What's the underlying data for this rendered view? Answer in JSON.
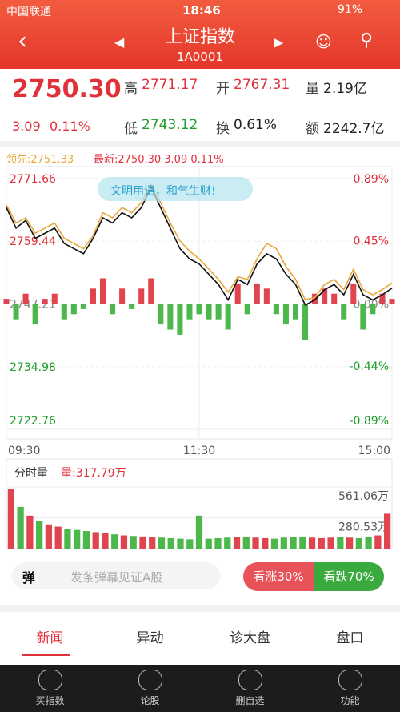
{
  "status_bar": {
    "carrier": "中国联通",
    "time": "18:46",
    "battery": "91%"
  },
  "header": {
    "title": "上证指数",
    "code": "1A0001"
  },
  "quote": {
    "price": "2750.30",
    "change": "3.09",
    "change_pct": "0.11%",
    "items": [
      {
        "label": "高",
        "value": "2771.17"
      },
      {
        "label": "开",
        "value": "2767.31"
      },
      {
        "label": "量",
        "value": "2.19亿"
      },
      {
        "label": "低",
        "value": "2743.12"
      },
      {
        "label": "换",
        "value": "0.61%"
      },
      {
        "label": "额",
        "value": "2242.7亿"
      }
    ]
  },
  "danmaku": "文明用语，和气生财!",
  "chart_data": [
    {
      "type": "line",
      "legend": [
        "领先:2751.33",
        "最新:2750.30 3.09 0.11%"
      ],
      "xlim": [
        0,
        240
      ],
      "xticks": [
        {
          "value": 0,
          "label": "09:30"
        },
        {
          "value": 120,
          "label": "11:30"
        },
        {
          "value": 240,
          "label": "15:00"
        }
      ],
      "ylim": [
        2722.76,
        2771.66
      ],
      "yticks": [
        2771.66,
        2759.44,
        2747.21,
        2734.98,
        2722.76
      ],
      "y2lim": [
        -0.89,
        0.89
      ],
      "y2ticks": [
        {
          "value": 0.89,
          "label": "0.89%"
        },
        {
          "value": 0.45,
          "label": "0.45%"
        },
        {
          "value": 0,
          "label": "0.00%"
        },
        {
          "value": -0.44,
          "label": "-0.44%"
        },
        {
          "value": -0.89,
          "label": "-0.89%"
        }
      ],
      "x": [
        0,
        6,
        12,
        18,
        24,
        30,
        36,
        42,
        48,
        54,
        60,
        66,
        72,
        78,
        84,
        90,
        96,
        102,
        108,
        114,
        120,
        126,
        132,
        138,
        144,
        150,
        156,
        162,
        168,
        174,
        180,
        186,
        192,
        198,
        204,
        210,
        216,
        222,
        228,
        234,
        240
      ],
      "series": [
        {
          "name": "最新",
          "color": "#111111",
          "values": [
            2766,
            2762,
            2763.5,
            2760,
            2761,
            2762,
            2759,
            2758,
            2757,
            2760,
            2764,
            2763,
            2765,
            2764,
            2766,
            2770,
            2766,
            2762,
            2758,
            2756,
            2755,
            2753,
            2751,
            2748,
            2752,
            2751,
            2755,
            2757,
            2756,
            2753,
            2751,
            2747,
            2748,
            2750,
            2751,
            2749,
            2753,
            2749,
            2748,
            2749,
            2750.3
          ]
        },
        {
          "name": "领先",
          "color": "#e8a838",
          "values": [
            2766.5,
            2763,
            2764,
            2761,
            2762,
            2763,
            2760,
            2759,
            2758,
            2760.5,
            2765,
            2764,
            2766,
            2765,
            2767,
            2770.5,
            2767,
            2763,
            2759.5,
            2757.5,
            2756,
            2754,
            2752,
            2749.5,
            2752.5,
            2752,
            2756,
            2759,
            2758,
            2754.5,
            2752,
            2748,
            2748.5,
            2751,
            2752,
            2750,
            2754,
            2750,
            2749,
            2750,
            2751.33
          ]
        }
      ],
      "bars": [
        1,
        -3,
        2,
        -4,
        1,
        2,
        -3,
        -2,
        -1,
        3,
        5,
        -2,
        3,
        -1,
        3,
        5,
        -4,
        -5,
        -6,
        -3,
        -2,
        -3,
        -3,
        -5,
        4,
        -2,
        4,
        3,
        -2,
        -4,
        -3,
        -7,
        2,
        3,
        2,
        -3,
        4,
        -5,
        -2,
        2,
        1
      ],
      "up_color": "#e0454f",
      "down_color": "#4cb84c"
    },
    {
      "type": "bar",
      "title": "分时量",
      "label": "量:317.79万",
      "ylim": [
        0,
        561.06
      ],
      "yticks": [
        {
          "value": 561.06,
          "label": "561.06万"
        },
        {
          "value": 280.53,
          "label": "280.53万"
        }
      ],
      "values": [
        540,
        380,
        300,
        250,
        220,
        200,
        180,
        170,
        160,
        150,
        140,
        130,
        120,
        115,
        110,
        105,
        100,
        95,
        90,
        85,
        300,
        90,
        95,
        100,
        105,
        110,
        100,
        95,
        90,
        100,
        105,
        110,
        100,
        95,
        100,
        105,
        100,
        95,
        110,
        120,
        317.79
      ]
    }
  ],
  "danmaku_bar": {
    "icon": "弹",
    "placeholder": "发条弹幕见证A股",
    "bull": "看涨30%",
    "bear": "看跌70%"
  },
  "tabs": [
    "新闻",
    "异动",
    "诊大盘",
    "盘口"
  ],
  "nav": [
    "买指数",
    "论股",
    "删自选",
    "功能"
  ]
}
